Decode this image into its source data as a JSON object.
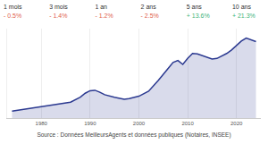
{
  "chart_data": {
    "type": "area",
    "header": [
      {
        "label": "1 mois",
        "text": "- 0.5%",
        "color": "#e0604c"
      },
      {
        "label": "3 mois",
        "text": "- 1.4%",
        "color": "#e0604c"
      },
      {
        "label": "1 an",
        "text": "- 1.2%",
        "color": "#e0604c"
      },
      {
        "label": "2 ans",
        "text": "- 2.5%",
        "color": "#e0604c"
      },
      {
        "label": "5 ans",
        "text": "+ 13.6%",
        "color": "#3bb37a"
      },
      {
        "label": "10 ans",
        "text": "+ 21.3%",
        "color": "#3bb37a"
      }
    ],
    "source": "Source : Données MeilleursAgents et données publiques (Notaires, INSEE)",
    "x": [
      1974,
      1976,
      1978,
      1980,
      1982,
      1984,
      1986,
      1988,
      1989,
      1990,
      1991,
      1992,
      1993,
      1995,
      1997,
      1998,
      2000,
      2002,
      2004,
      2006,
      2007,
      2008,
      2009,
      2010,
      2011,
      2012,
      2013,
      2014,
      2015,
      2016,
      2017,
      2018,
      2019,
      2020,
      2021,
      2022,
      2023,
      2024
    ],
    "values": [
      14,
      17,
      20,
      23,
      27,
      29,
      32,
      42,
      50,
      55,
      56,
      52,
      47,
      42,
      38,
      39,
      44,
      54,
      76,
      100,
      112,
      116,
      108,
      120,
      130,
      129,
      126,
      122,
      119,
      120,
      125,
      130,
      137,
      146,
      155,
      161,
      158,
      154
    ],
    "color": "#2b3990",
    "xlim": [
      1973,
      2025
    ],
    "xticks": [
      1980,
      1990,
      2000,
      2010,
      2020
    ],
    "ylim": [
      0,
      180
    ],
    "tick_labels": "x",
    "grid": true
  }
}
